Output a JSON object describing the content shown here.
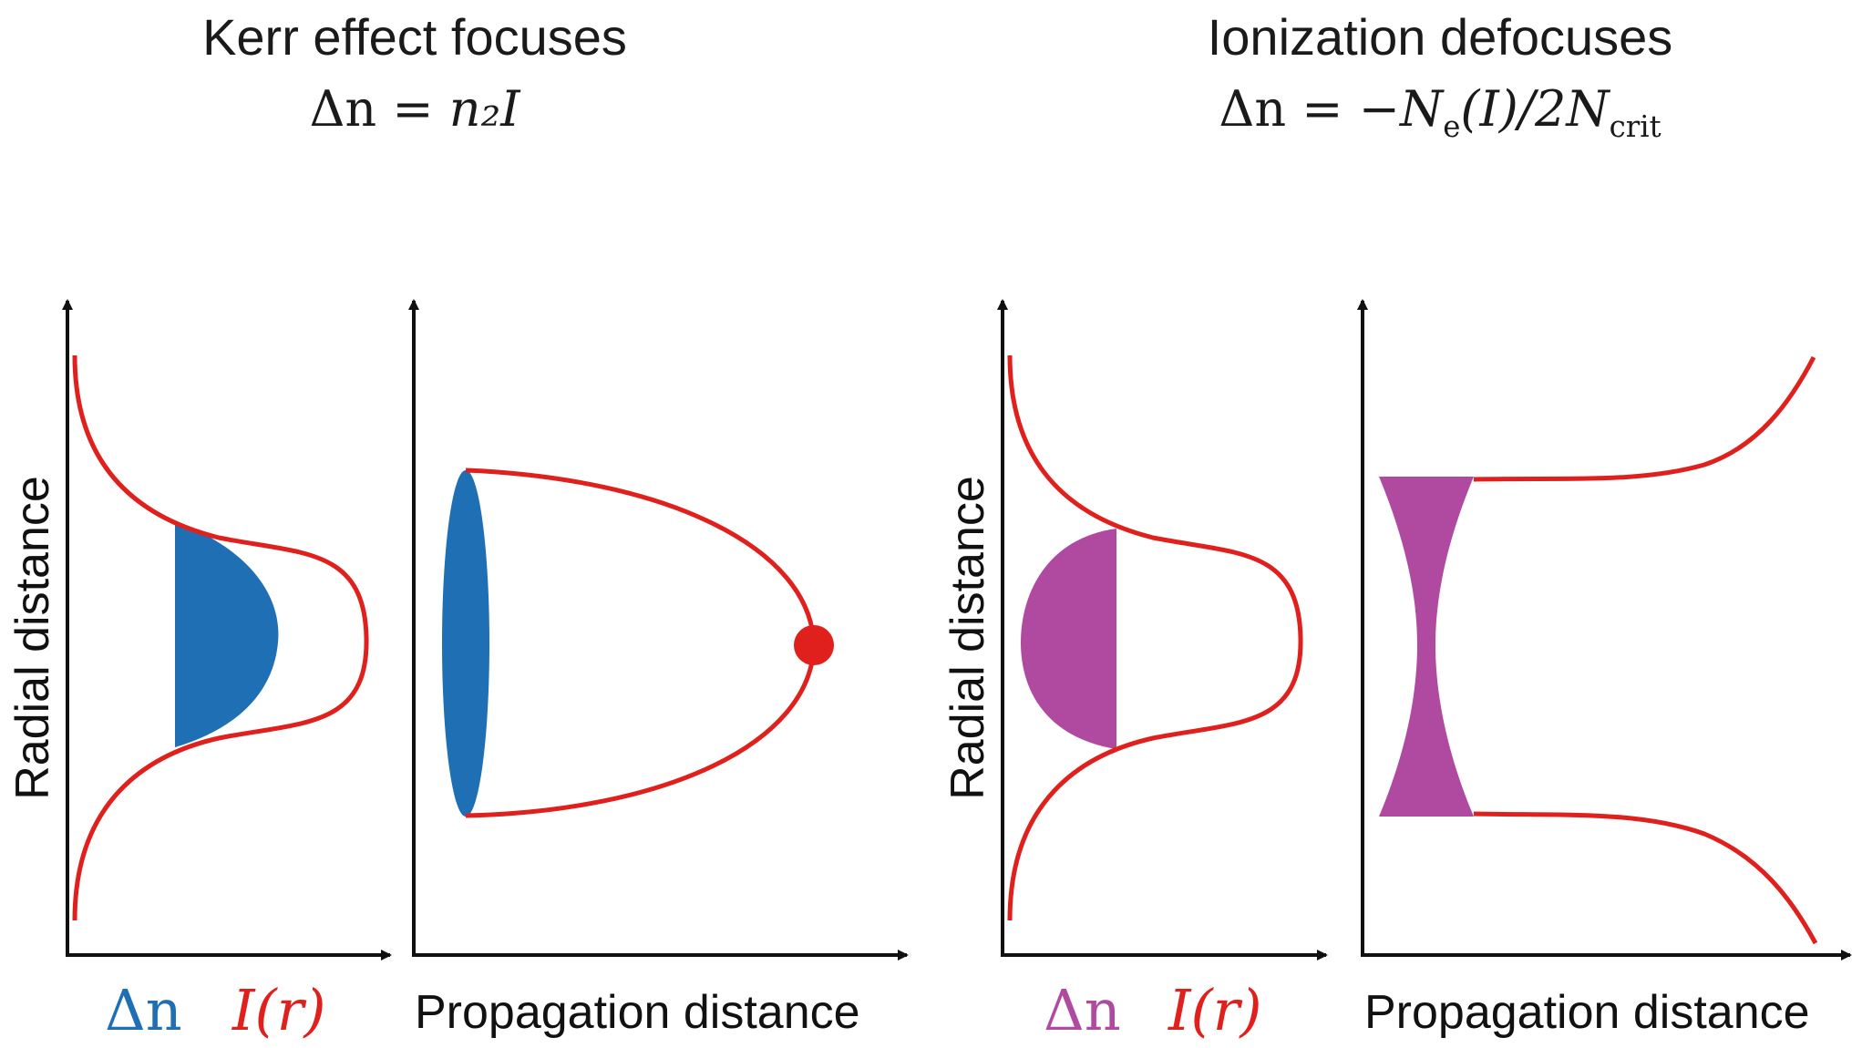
{
  "left_panel": {
    "title": "Kerr effect focuses",
    "formula_lhs": "Δn = ",
    "formula_rhs": "n₂I",
    "ylabel": "Radial distance",
    "xlabel_delta": "Δn",
    "xlabel_intensity": "I(r)",
    "xlabel_right": "Propagation distance",
    "lens_color": "#1f6fb5",
    "focus_color": "#e0201c"
  },
  "right_panel": {
    "title": "Ionization defocuses",
    "formula_lhs": "Δn = −",
    "formula_ne": "N",
    "formula_ne_sub": "e",
    "formula_mid": "(I)/2",
    "formula_ncrit": "N",
    "formula_ncrit_sub": "crit",
    "ylabel": "Radial distance",
    "xlabel_delta": "Δn",
    "xlabel_intensity": "I(r)",
    "xlabel_right": "Propagation distance",
    "lens_color": "#b04aa0"
  },
  "colors": {
    "beam": "#e0201c",
    "axis": "#111111"
  }
}
